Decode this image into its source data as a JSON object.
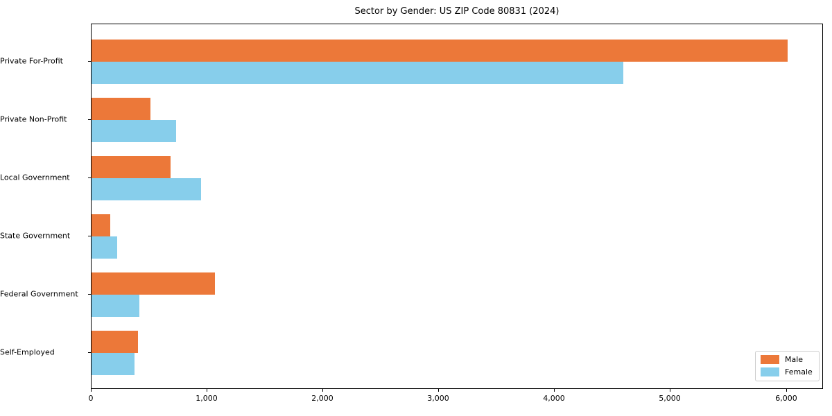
{
  "chart_data": {
    "type": "bar",
    "orientation": "horizontal",
    "title": "Sector by Gender: US ZIP Code 80831 (2024)",
    "categories": [
      "Private For-Profit",
      "Private Non-Profit",
      "Local Government",
      "State Government",
      "Federal Government",
      "Self-Employed"
    ],
    "series": [
      {
        "name": "Male",
        "color": "#EC7839",
        "values": [
          6010,
          510,
          685,
          160,
          1065,
          400
        ]
      },
      {
        "name": "Female",
        "color": "#87CEEB",
        "values": [
          4590,
          730,
          945,
          220,
          410,
          370
        ]
      }
    ],
    "xlabel": "",
    "ylabel": "",
    "xlim": [
      0,
      6320
    ],
    "x_ticks": [
      0,
      1000,
      2000,
      3000,
      4000,
      5000,
      6000
    ],
    "x_tick_labels": [
      "0",
      "1,000",
      "2,000",
      "3,000",
      "4,000",
      "5,000",
      "6,000"
    ],
    "grid": false,
    "legend_position": "lower right"
  }
}
